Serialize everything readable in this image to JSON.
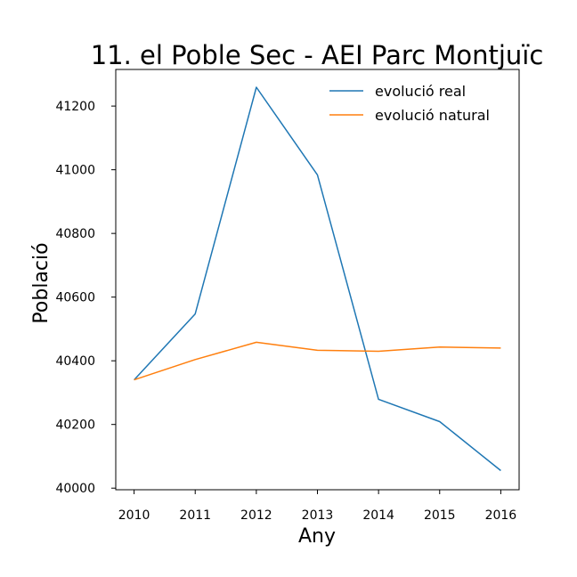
{
  "chart_data": {
    "type": "line",
    "title": "11. el Poble Sec - AEI Parc Montjuïc",
    "xlabel": "Any",
    "ylabel": "Població",
    "x": [
      2010,
      2011,
      2012,
      2013,
      2014,
      2015,
      2016
    ],
    "xlim": [
      2009.7,
      2016.3
    ],
    "ylim": [
      39995,
      41315
    ],
    "y_ticks": [
      40000,
      40200,
      40400,
      40600,
      40800,
      41000,
      41200
    ],
    "grid": false,
    "legend_position": "top-right",
    "series": [
      {
        "name": "evolució real",
        "color": "#1f77b4",
        "values": [
          40340,
          40547,
          41259,
          40984,
          40279,
          40209,
          40055
        ]
      },
      {
        "name": "evolució natural",
        "color": "#ff7f0e",
        "values": [
          40340,
          40404,
          40458,
          40433,
          40430,
          40443,
          40440
        ]
      }
    ]
  }
}
